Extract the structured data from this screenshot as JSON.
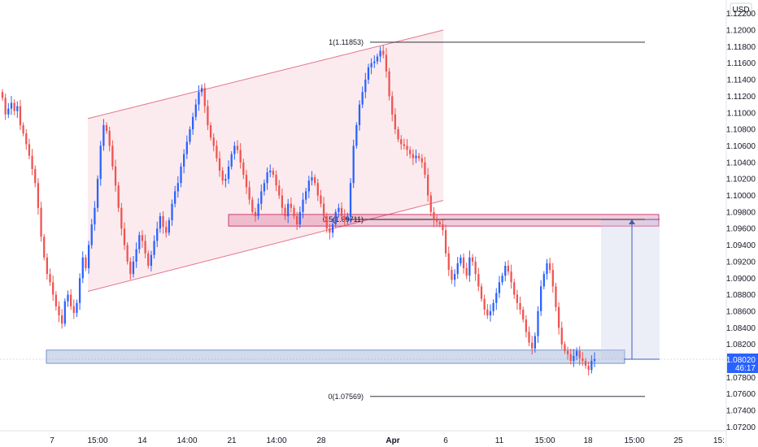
{
  "chart_data": {
    "type": "candlestick",
    "instrument_currency": "USD",
    "y_axis": {
      "ticks": [
        1.122,
        1.12,
        1.118,
        1.116,
        1.114,
        1.112,
        1.11,
        1.108,
        1.106,
        1.104,
        1.102,
        1.1,
        1.098,
        1.096,
        1.094,
        1.092,
        1.09,
        1.088,
        1.086,
        1.084,
        1.082,
        1.078,
        1.076,
        1.074,
        1.072
      ],
      "tick_labels": [
        "1.12200",
        "1.12000",
        "1.11800",
        "1.11600",
        "1.11400",
        "1.11200",
        "1.11000",
        "1.10800",
        "1.10600",
        "1.10400",
        "1.10200",
        "1.10000",
        "1.09800",
        "1.09600",
        "1.09400",
        "1.09200",
        "1.09000",
        "1.08800",
        "1.08600",
        "1.08400",
        "1.08200",
        "1.07800",
        "1.07600",
        "1.07400",
        "1.07200"
      ],
      "range": [
        1.0712,
        1.1225
      ]
    },
    "x_axis": {
      "tick_labels": [
        "7",
        "15:00",
        "14",
        "14:00",
        "21",
        "14:00",
        "28",
        "Apr",
        "6",
        "11",
        "15:00",
        "18",
        "15:00",
        "25",
        "15:"
      ]
    },
    "current_price": {
      "value": 1.0802,
      "label": "1.08020",
      "countdown": "46:17",
      "color": "#2962ff"
    },
    "up_color": "#2962ff",
    "down_color": "#ef5350",
    "fib_levels": [
      {
        "label": "1(1.11853)",
        "value": 1.11853
      },
      {
        "label": "0.5(1.09711)",
        "value": 1.09711
      },
      {
        "label": "0(1.07569)",
        "value": 1.07569
      }
    ],
    "zones": [
      {
        "name": "resistance-zone",
        "low": 1.0963,
        "high": 1.0977,
        "color": "#c2185b"
      },
      {
        "name": "support-zone",
        "low": 1.0797,
        "high": 1.0813,
        "color": "#5b7fc0"
      }
    ],
    "channel": {
      "color": "#e57388",
      "lower_start": 1.0884,
      "lower_end": 1.0994,
      "upper_start": 1.1093,
      "upper_end": 1.12
    },
    "projection": {
      "from": 1.0802,
      "to": 1.0971,
      "color": "#3f5fb8"
    },
    "closes": [
      1.1118,
      1.1098,
      1.1105,
      1.1112,
      1.1102,
      1.1108,
      1.1085,
      1.1075,
      1.1062,
      1.1048,
      1.1032,
      1.1015,
      1.0985,
      1.095,
      1.0925,
      1.0905,
      1.0895,
      1.088,
      1.0866,
      1.0855,
      1.0845,
      1.0872,
      1.088,
      1.0866,
      1.0858,
      1.087,
      1.09,
      1.0925,
      1.0912,
      1.094,
      1.0965,
      1.0985,
      1.102,
      1.106,
      1.1085,
      1.1078,
      1.106,
      1.1035,
      1.1012,
      1.0985,
      1.096,
      1.094,
      1.092,
      1.0905,
      1.092,
      1.0935,
      1.0952,
      1.0945,
      1.093,
      1.0915,
      1.0928,
      1.0945,
      1.096,
      1.0975,
      1.0962,
      1.0955,
      1.097,
      1.099,
      1.1005,
      1.1015,
      1.1035,
      1.105,
      1.1065,
      1.108,
      1.1095,
      1.111,
      1.1125,
      1.113,
      1.1108,
      1.1085,
      1.107,
      1.106,
      1.1045,
      1.103,
      1.1018,
      1.102,
      1.1035,
      1.105,
      1.106,
      1.1055,
      1.104,
      1.1025,
      1.101,
      1.0995,
      1.098,
      1.0975,
      1.099,
      1.1005,
      1.1015,
      1.1028,
      1.103,
      1.1025,
      1.1012,
      1.1,
      1.0985,
      1.0975,
      1.099,
      1.0985,
      1.0975,
      1.0965,
      1.098,
      1.0995,
      1.1005,
      1.1018,
      1.1022,
      1.1015,
      1.1,
      1.099,
      1.0975,
      1.096,
      1.0955,
      1.0965,
      1.098,
      1.0985,
      1.0975,
      1.097,
      1.0975,
      1.1015,
      1.106,
      1.1085,
      1.111,
      1.1125,
      1.114,
      1.1155,
      1.116,
      1.1162,
      1.1168,
      1.1175,
      1.117,
      1.115,
      1.112,
      1.1098,
      1.108,
      1.1068,
      1.1062,
      1.106,
      1.1055,
      1.105,
      1.1045,
      1.1048,
      1.1045,
      1.104,
      1.1025,
      1.1,
      1.098,
      1.097,
      1.0968,
      1.0965,
      1.0958,
      1.093,
      1.091,
      1.0898,
      1.0905,
      1.0918,
      1.0925,
      1.0912,
      1.0903,
      1.0925,
      1.092,
      1.0905,
      1.089,
      1.0875,
      1.0862,
      1.0855,
      1.086,
      1.087,
      1.0882,
      1.0895,
      1.0903,
      1.0915,
      1.0908,
      1.0895,
      1.088,
      1.087,
      1.0862,
      1.085,
      1.0835,
      1.0822,
      1.0815,
      1.083,
      1.086,
      1.089,
      1.0905,
      1.0918,
      1.091,
      1.089,
      1.0865,
      1.084,
      1.082,
      1.0812,
      1.0808,
      1.08,
      1.0806,
      1.0812,
      1.0803,
      1.08,
      1.0794,
      1.0789,
      1.08,
      1.0802
    ]
  }
}
